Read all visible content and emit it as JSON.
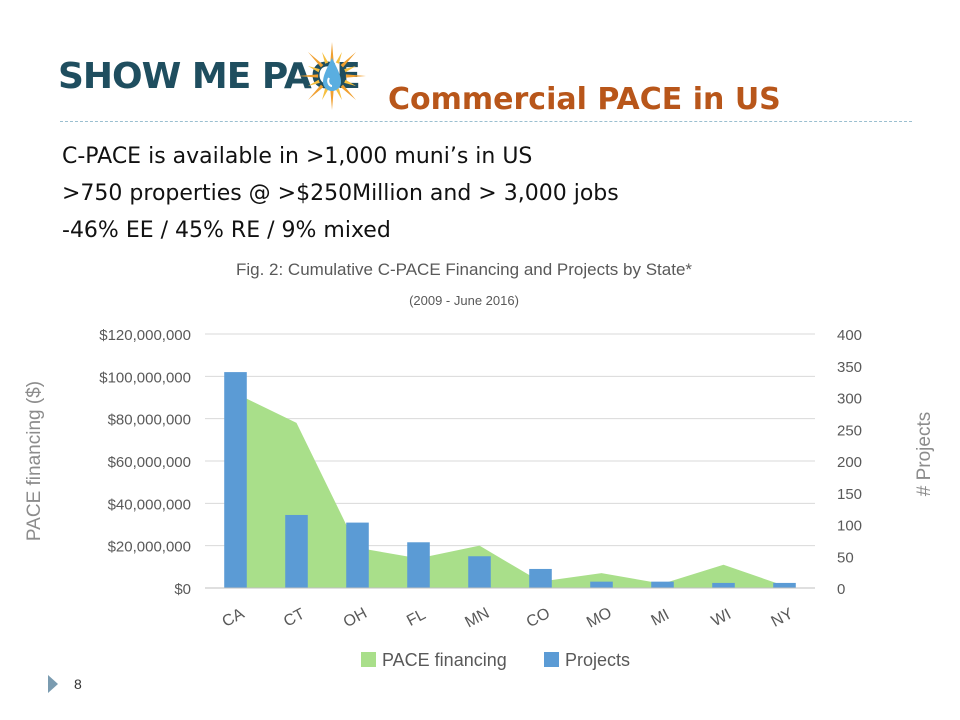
{
  "logo": {
    "text": "SHOW ME PACE",
    "icon": "sun-water-drop-icon",
    "colors": {
      "text": "#1f4e5f",
      "sun": "#f0a030",
      "drop": "#5aaee0"
    }
  },
  "slide": {
    "title": "Commercial PACE in US",
    "bullets": [
      "C-PACE is available in >1,000 muni’s in US",
      ">750 properties @ >$250Million and > 3,000 jobs",
      "-46% EE / 45% RE / 9% mixed"
    ],
    "page_number": "8"
  },
  "chart_data": {
    "type": "bar",
    "title": "Fig. 2: Cumulative C-PACE Financing and Projects by State*",
    "subtitle": "(2009 - June 2016)",
    "categories": [
      "CA",
      "CT",
      "OH",
      "FL",
      "MN",
      "CO",
      "MO",
      "MI",
      "WI",
      "NY"
    ],
    "y_left": {
      "label": "PACE financing ($)",
      "range": [
        0,
        120000000
      ],
      "ticks": [
        "$0",
        "$20,000,000",
        "$40,000,000",
        "$60,000,000",
        "$80,000,000",
        "$100,000,000",
        "$120,000,000"
      ]
    },
    "y_right": {
      "label": "# Projects",
      "range": [
        0,
        400
      ],
      "ticks": [
        "0",
        "50",
        "100",
        "150",
        "200",
        "250",
        "300",
        "350",
        "400"
      ]
    },
    "series": [
      {
        "name": "PACE financing",
        "type": "area",
        "axis": "left",
        "color": "#a9df8a",
        "values": [
          92000000,
          78000000,
          19000000,
          14000000,
          20000000,
          3000000,
          7000000,
          2000000,
          11000000,
          1000000
        ]
      },
      {
        "name": "Projects",
        "type": "bar",
        "axis": "right",
        "color": "#5b9bd5",
        "values": [
          340,
          115,
          103,
          72,
          50,
          30,
          10,
          10,
          8,
          8
        ]
      }
    ],
    "grid": true,
    "legend": "bottom"
  }
}
